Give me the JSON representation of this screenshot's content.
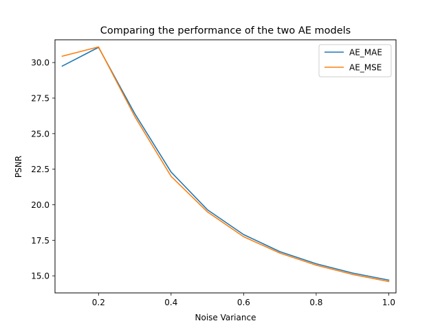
{
  "chart_data": {
    "type": "line",
    "title": "Comparing the performance of the two AE models",
    "xlabel": "Noise Variance",
    "ylabel": "PSNR",
    "xlim": [
      0.08,
      1.02
    ],
    "ylim": [
      13.8,
      31.6
    ],
    "x_ticks": [
      "0.2",
      "0.4",
      "0.6",
      "0.8",
      "1.0"
    ],
    "y_ticks": [
      "15.0",
      "17.5",
      "20.0",
      "22.5",
      "25.0",
      "27.5",
      "30.0"
    ],
    "x": [
      0.1,
      0.2,
      0.3,
      0.4,
      0.5,
      0.6,
      0.7,
      0.8,
      0.9,
      1.0
    ],
    "series": [
      {
        "name": "AE_MAE",
        "color": "#1f77b4",
        "values": [
          29.75,
          31.07,
          26.4,
          22.3,
          19.65,
          17.9,
          16.7,
          15.85,
          15.2,
          14.7
        ]
      },
      {
        "name": "AE_MSE",
        "color": "#ff7f0e",
        "values": [
          30.45,
          31.1,
          26.2,
          22.0,
          19.5,
          17.75,
          16.6,
          15.75,
          15.1,
          14.6
        ]
      }
    ],
    "grid": false,
    "legend_position": "top-right"
  }
}
